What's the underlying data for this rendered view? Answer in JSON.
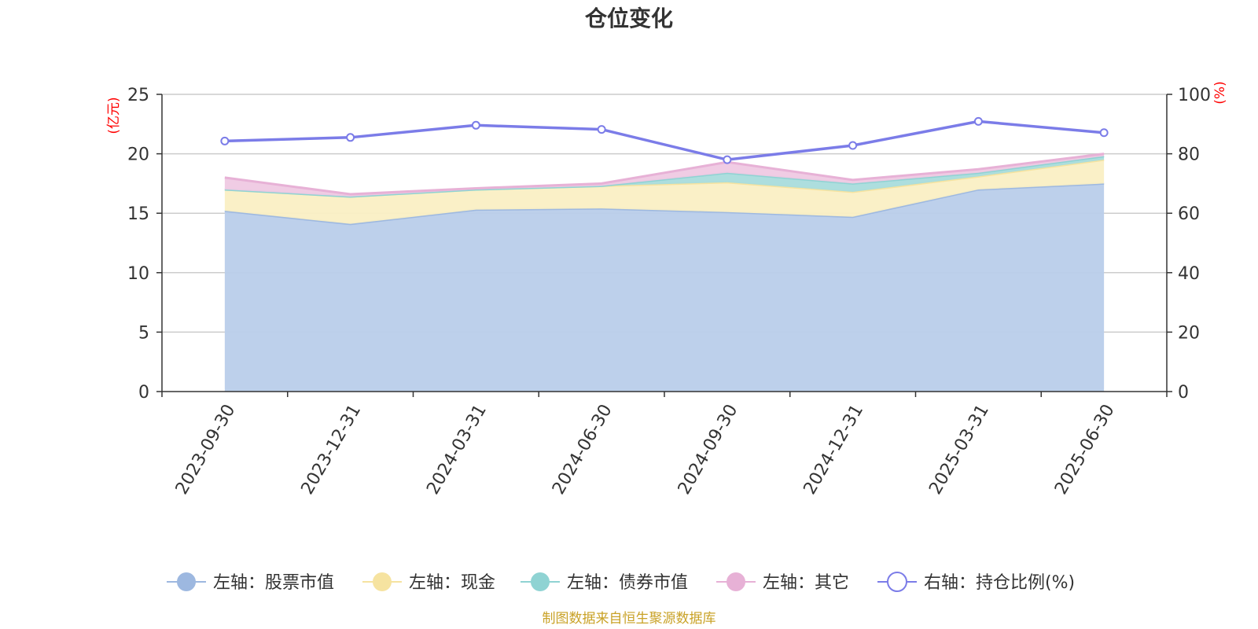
{
  "chart_data": {
    "type": "area",
    "title": "仓位变化",
    "categories": [
      "2023-09-30",
      "2023-12-31",
      "2024-03-31",
      "2024-06-30",
      "2024-09-30",
      "2024-12-31",
      "2025-03-31",
      "2025-06-30"
    ],
    "left_axis": {
      "unit": "(亿元)",
      "ylim": [
        0,
        25
      ],
      "ticks": [
        0,
        5,
        10,
        15,
        20,
        25
      ]
    },
    "right_axis": {
      "unit": "(%)",
      "ylim": [
        0,
        100
      ],
      "ticks": [
        0,
        20,
        40,
        60,
        80,
        100
      ]
    },
    "series": [
      {
        "name": "左轴：股票市值",
        "axis": "left",
        "type": "area",
        "stacked": true,
        "color": "#9db8e0",
        "fill": "#b9cdea",
        "values": [
          15.2,
          14.1,
          15.3,
          15.4,
          15.1,
          14.7,
          17.0,
          17.5
        ]
      },
      {
        "name": "左轴：现金",
        "axis": "left",
        "type": "area",
        "stacked": true,
        "color": "#f6e3a0",
        "fill": "#faefc4",
        "values": [
          1.8,
          2.3,
          1.7,
          1.9,
          2.5,
          2.1,
          1.1,
          2.0
        ]
      },
      {
        "name": "左轴：债券市值",
        "axis": "left",
        "type": "area",
        "stacked": true,
        "color": "#8fd3d3",
        "fill": "#a9dcdc",
        "values": [
          0,
          0,
          0,
          0,
          0.8,
          0.7,
          0.3,
          0.3
        ]
      },
      {
        "name": "左轴：其它",
        "axis": "left",
        "type": "area",
        "stacked": true,
        "color": "#e7b1d6",
        "fill": "#efc9e3",
        "values": [
          1.0,
          0.2,
          0.1,
          0.2,
          0.9,
          0.3,
          0.3,
          0.2
        ]
      },
      {
        "name": "右轴：持仓比例(%)",
        "axis": "right",
        "type": "line",
        "color": "#7b7ce8",
        "values": [
          84.3,
          85.5,
          89.6,
          88.2,
          78.0,
          82.8,
          90.9,
          87.1
        ]
      }
    ],
    "grid": true,
    "legend_position": "bottom"
  },
  "source_note": "制图数据来自恒生聚源数据库"
}
